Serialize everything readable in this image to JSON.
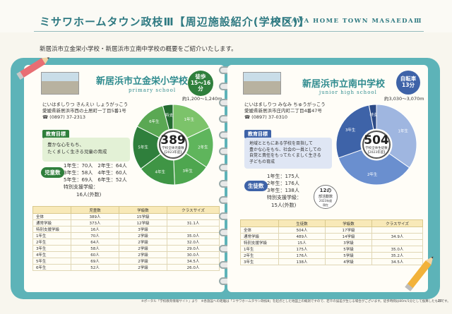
{
  "header": {
    "title": "ミサワホームタウン政枝Ⅲ【周辺施設紹介(学校区)】",
    "title_en": "MISAWA HOME TOWN MASAEDAⅢ"
  },
  "subtitle": "新居浜市立金栄小学校・新居浜市立南中学校の概要をご紹介いたします。",
  "colors": {
    "teal": "#2e8b8e",
    "green_dark": "#2f7f3c",
    "green_mid": "#4ea64f",
    "green_light": "#7cc36a",
    "blue_dark": "#3e63a8",
    "blue_mid": "#6a8fcf",
    "blue_light": "#9fb6e0",
    "binder": "#5db3b8"
  },
  "elementary": {
    "name": "新居浜市立金栄小学校",
    "name_en": "primary school",
    "badge": [
      "徒歩",
      "15〜16",
      "分"
    ],
    "distance": "約1,200〜1,240m",
    "reading": "にいはましりつ きんえい しょうがっこう",
    "address": "愛媛県新居浜市西の土居町一丁目5番1号",
    "tel": "☎ (0897) 37-2313",
    "goal_label": "教育目標",
    "goal_lines": [
      "豊かな心をもち、",
      "たくましく生きる児童の育成"
    ],
    "count_label": "児童数",
    "counts": [
      "1年生：70人　2年生：64人",
      "3年生：58人　4年生：60人",
      "5年生：69人　6年生：52人",
      "特別支援学級：",
      "16人(外数)"
    ],
    "total": "389",
    "total_caption": [
      "学校全体児童数",
      "【2023年度】"
    ],
    "chart_data": {
      "type": "pie",
      "title": "学校全体児童数",
      "categories": [
        "1年生",
        "2年生",
        "3年生",
        "4年生",
        "5年生",
        "6年生",
        "特支"
      ],
      "values": [
        70,
        64,
        58,
        60,
        69,
        52,
        16
      ],
      "colors": [
        "#7cc36a",
        "#5fb55c",
        "#4ea64f",
        "#3f9545",
        "#2f7f3c",
        "#5aa853",
        "#236b30"
      ]
    },
    "table": {
      "headers": [
        "",
        "児童数",
        "学級数",
        "クラスサイズ"
      ],
      "rows": [
        [
          "全体",
          "389人",
          "15学級",
          ""
        ],
        [
          "通常学級",
          "373人",
          "12学級",
          "31.1人"
        ],
        [
          "特別支援学級",
          "16人",
          "3学級",
          ""
        ],
        [
          "1年生",
          "70人",
          "2学級",
          "35.0人"
        ],
        [
          "2年生",
          "64人",
          "2学級",
          "32.0人"
        ],
        [
          "3年生",
          "58人",
          "2学級",
          "29.0人"
        ],
        [
          "4年生",
          "60人",
          "2学級",
          "30.0人"
        ],
        [
          "5年生",
          "69人",
          "2学級",
          "34.5人"
        ],
        [
          "6年生",
          "52人",
          "2学級",
          "26.0人"
        ]
      ]
    }
  },
  "junior": {
    "name": "新居浜市立南中学校",
    "name_en": "junior high school",
    "badge": [
      "自転車",
      "13分"
    ],
    "distance": "約3,030〜3,070m",
    "reading": "にいはましりつ みなみ ちゅうがっこう",
    "address": "愛媛県新居浜市庄内町二丁目4番47号",
    "tel": "☎ (0897) 37-0310",
    "goal_label": "教育目標",
    "goal_lines": [
      "地域とともにある学校を目指して",
      "豊かな心をもち、社会の一員としての",
      "自覚と責任をもってたくましく生きる",
      "子どもの育成"
    ],
    "count_label": "生徒数",
    "counts": [
      "1年生：175人",
      "2年生：176人",
      "3年生：138人",
      "特別支援学級：",
      "15人(外数)"
    ],
    "club": [
      "12の",
      "部活動数",
      "2023年度",
      "現在"
    ],
    "total": "504",
    "total_caption": [
      "学校全体生徒数",
      "【2023年度】"
    ],
    "chart_data": {
      "type": "pie",
      "title": "学校全体生徒数",
      "categories": [
        "1年生",
        "2年生",
        "3年生",
        "特支"
      ],
      "values": [
        175,
        176,
        138,
        15
      ],
      "colors": [
        "#9fb6e0",
        "#6a8fcf",
        "#3e63a8",
        "#2c4a86"
      ]
    },
    "table": {
      "headers": [
        "",
        "生徒数",
        "学級数",
        "クラスサイズ"
      ],
      "rows": [
        [
          "全体",
          "504人",
          "17学級",
          ""
        ],
        [
          "通常学級",
          "489人",
          "14学級",
          "34.9人"
        ],
        [
          "特別支援学級",
          "15人",
          "3学級",
          ""
        ],
        [
          "1年生",
          "175人",
          "5学級",
          "35.0人"
        ],
        [
          "2年生",
          "176人",
          "5学級",
          "35.2人"
        ],
        [
          "3年生",
          "138人",
          "4学級",
          "34.5人"
        ]
      ]
    }
  },
  "footer": "※ポータル「学校教育情報サイト」より　※各施設への距離は「ミサワホームタウン政枝Ⅲ」を起点とした地図上の概測ですので、若干の誤差が生じる場合がございます。徒歩時間は80m/1分として換算したものです。",
  "page_number": "10"
}
